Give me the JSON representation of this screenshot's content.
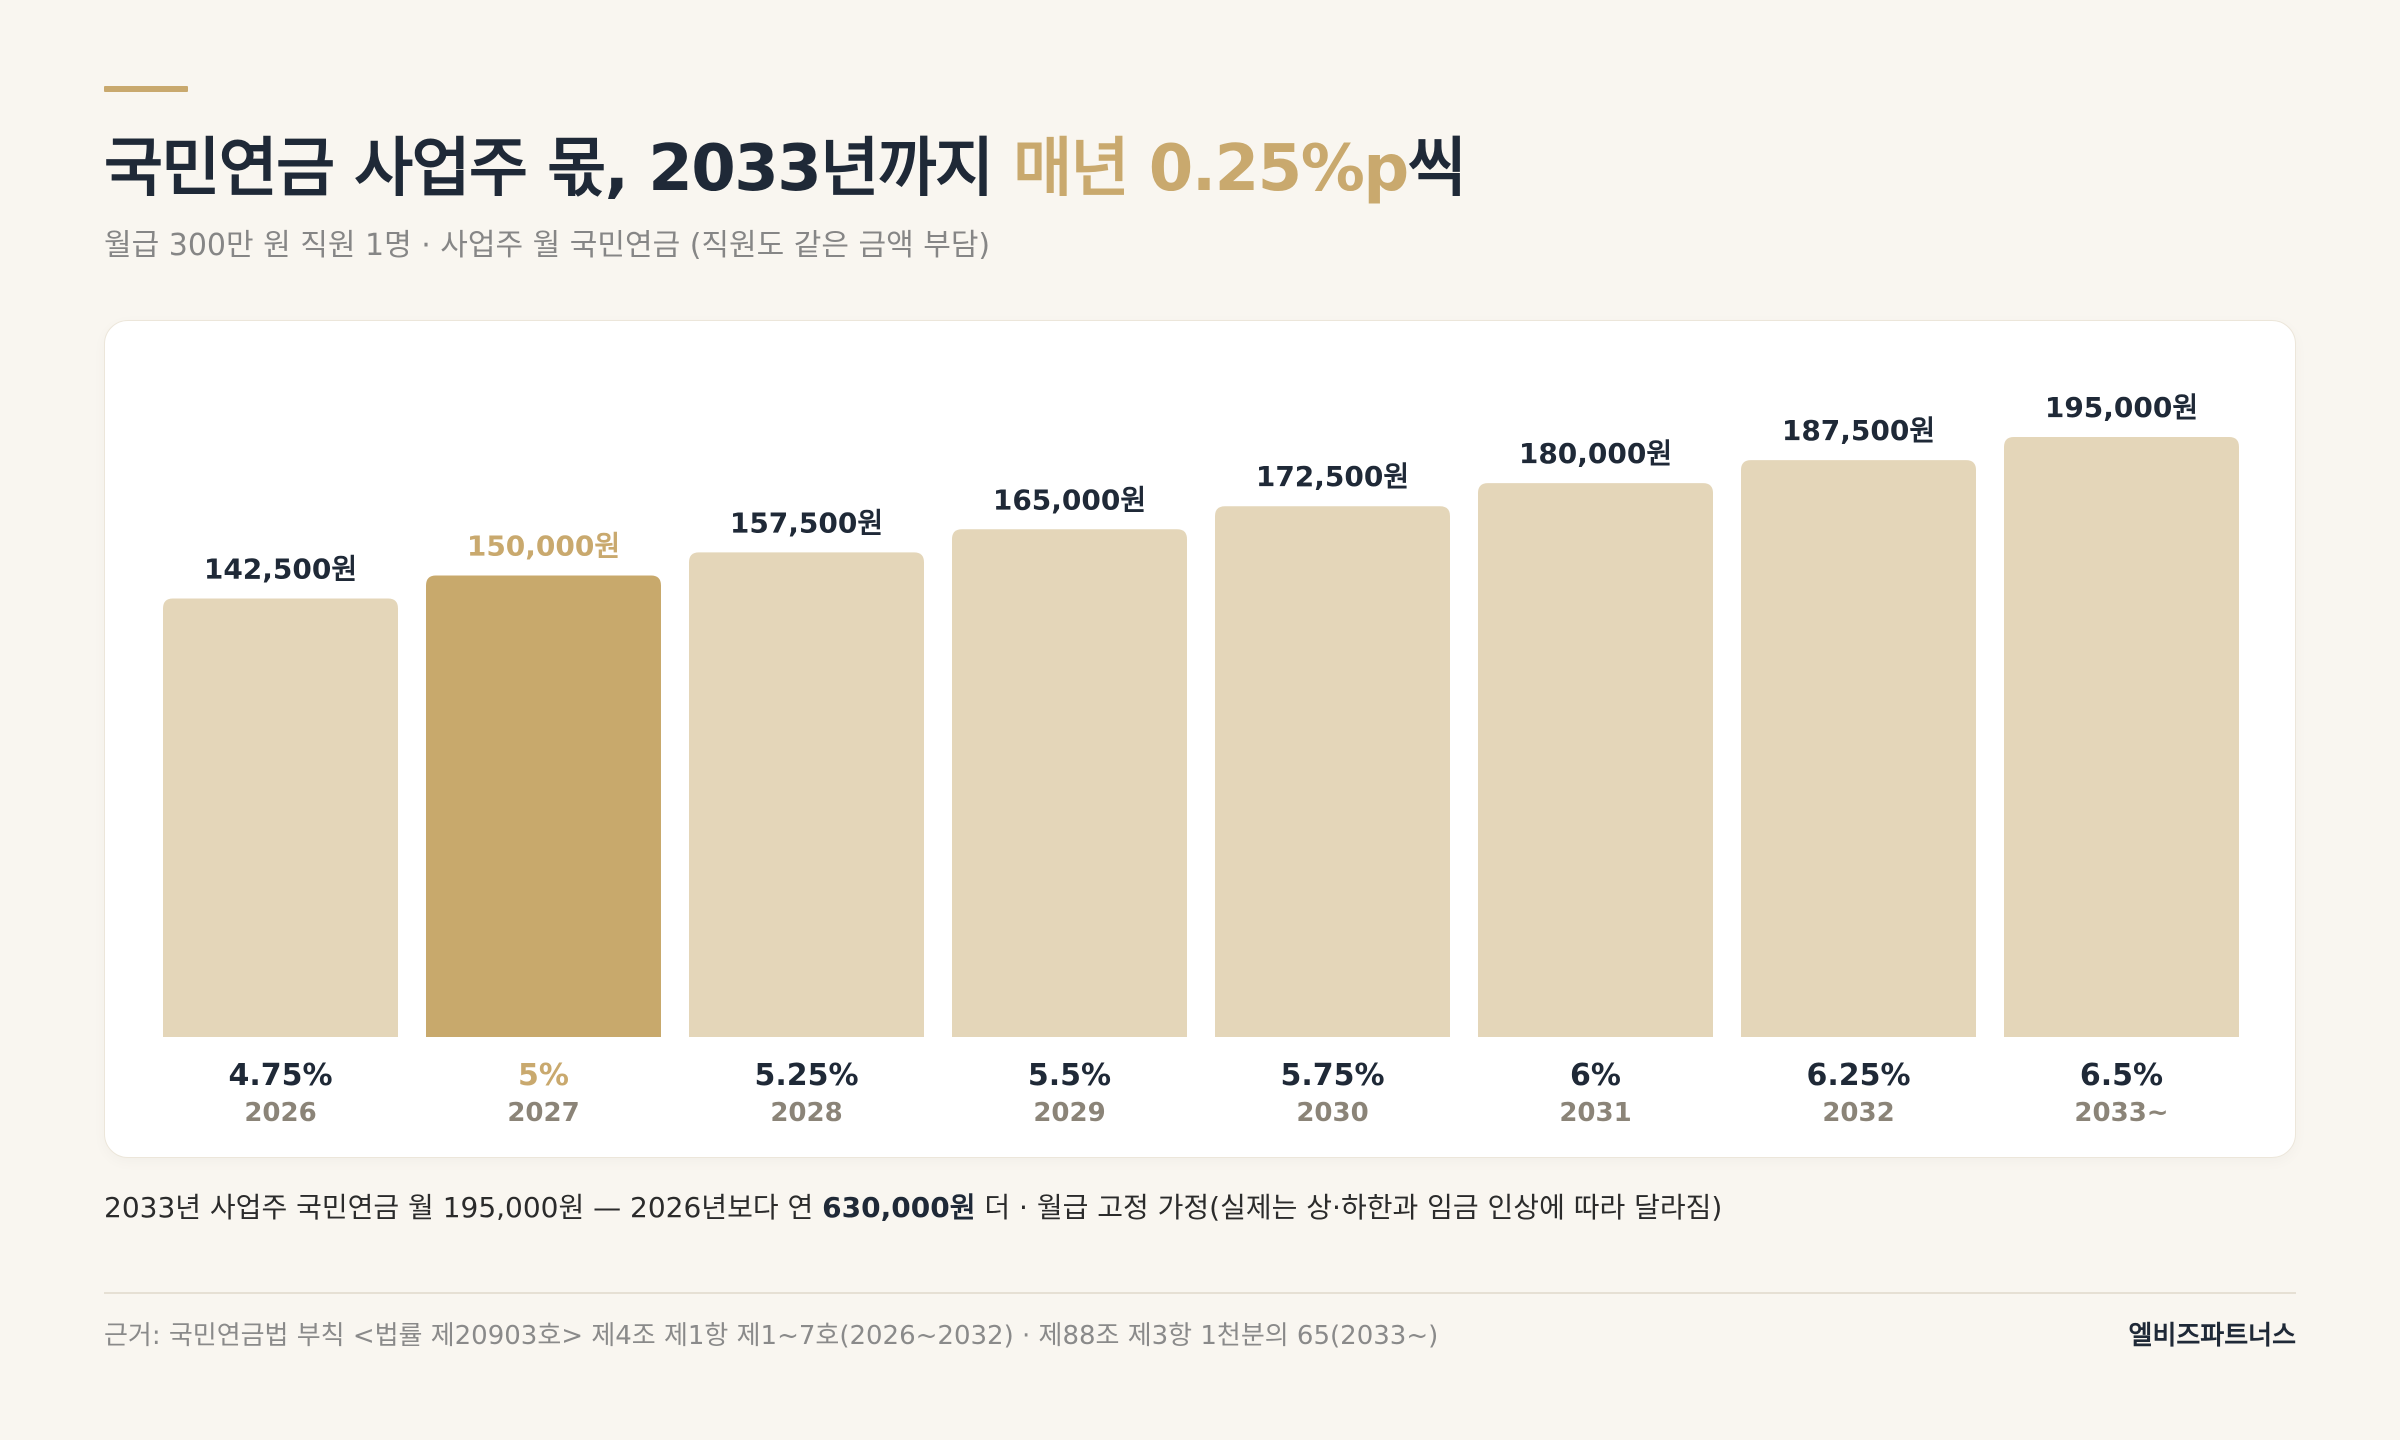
{
  "header": {
    "title_main": "국민연금 사업주 몫, 2033년까지 ",
    "title_highlight": "매년 0.25%p",
    "title_suffix": "씩",
    "subtitle": "월급 300만 원 직원 1명 · 사업주 월 국민연금 (직원도 같은 금액 부담)"
  },
  "chart_data": {
    "type": "bar",
    "categories": [
      "2026",
      "2027",
      "2028",
      "2029",
      "2030",
      "2031",
      "2032",
      "2033~"
    ],
    "rates": [
      "4.75%",
      "5%",
      "5.25%",
      "5.5%",
      "5.75%",
      "6%",
      "6.25%",
      "6.5%"
    ],
    "values": [
      142500,
      150000,
      157500,
      165000,
      172500,
      180000,
      187500,
      195000
    ],
    "value_labels": [
      "142,500원",
      "150,000원",
      "157,500원",
      "165,000원",
      "172,500원",
      "180,000원",
      "187,500원",
      "195,000원"
    ],
    "highlight_index": 1,
    "ylim": [
      0,
      195000
    ],
    "colors": {
      "bar": "#e4d6b9",
      "bar_highlight": "#c8a96c",
      "label": "#1f2937",
      "label_highlight": "#c9a96e",
      "year": "#8b8478"
    }
  },
  "note": {
    "prefix": "2033년 사업주 국민연금 월 195,000원 — 2026년보다 연 ",
    "bold": "630,000원",
    "suffix": " 더 · 월급 고정 가정(실제는 상·하한과 임금 인상에 따라 달라짐)"
  },
  "footer": {
    "source": "근거: 국민연금법 부칙 <법률 제20903호> 제4조 제1항 제1~7호(2026~2032) · 제88조 제3항 1천분의 65(2033~)",
    "brand": "엘비즈파트너스"
  }
}
